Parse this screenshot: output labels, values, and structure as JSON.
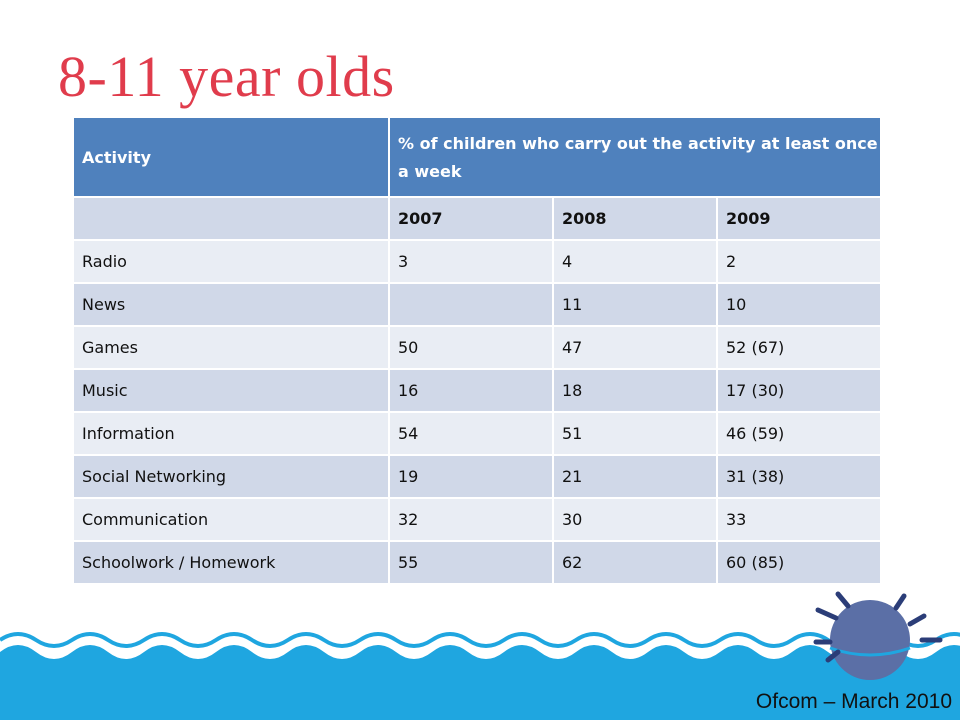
{
  "slide": {
    "title": "8-11 year olds",
    "credit": "Ofcom – March 2010"
  },
  "colors": {
    "title": "#e03c4c",
    "table_header": "#4f81bd",
    "table_row_dark": "#d0d8e8",
    "table_row_light": "#e9edf4",
    "water": "#1fa6e0"
  },
  "table": {
    "header": {
      "activity": "Activity",
      "measure": "% of children who carry out the activity at least once a week"
    },
    "years": [
      "2007",
      "2008",
      "2009"
    ],
    "rows": [
      {
        "activity": "Radio",
        "y2007": "3",
        "y2008": "4",
        "y2009": "2"
      },
      {
        "activity": "News",
        "y2007": "",
        "y2008": "11",
        "y2009": "10"
      },
      {
        "activity": "Games",
        "y2007": "50",
        "y2008": "47",
        "y2009": "52 (67)"
      },
      {
        "activity": "Music",
        "y2007": "16",
        "y2008": "18",
        "y2009": "17 (30)"
      },
      {
        "activity": "Information",
        "y2007": "54",
        "y2008": "51",
        "y2009": "46 (59)"
      },
      {
        "activity": "Social Networking",
        "y2007": "19",
        "y2008": "21",
        "y2009": "31 (38)"
      },
      {
        "activity": "Communication",
        "y2007": "32",
        "y2008": "30",
        "y2009": "33"
      },
      {
        "activity": "Schoolwork / Homework",
        "y2007": "55",
        "y2008": "62",
        "y2009": "60 (85)"
      }
    ]
  },
  "decorations": {
    "waves": "water-waves-graphic",
    "mascot": "spiky-ball-mascot-icon"
  }
}
